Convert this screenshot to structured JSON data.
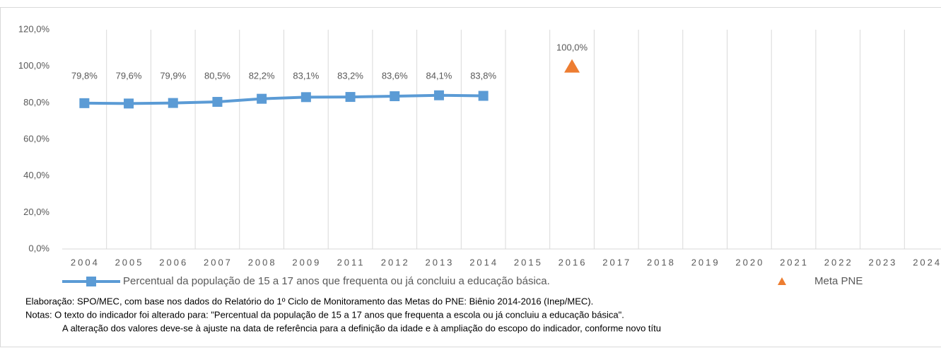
{
  "chart_data": {
    "type": "line",
    "categories": [
      "2004",
      "2005",
      "2006",
      "2007",
      "2008",
      "2009",
      "2011",
      "2012",
      "2013",
      "2014",
      "2015",
      "2016",
      "2017",
      "2018",
      "2019",
      "2020",
      "2021",
      "2022",
      "2023",
      "2024"
    ],
    "series": [
      {
        "name": "Percentual da população de 15 a 17 anos que frequenta ou já concluiu a educação básica.",
        "color": "#5b9bd5",
        "marker": "square",
        "values": [
          79.8,
          79.6,
          79.9,
          80.5,
          82.2,
          83.1,
          83.2,
          83.6,
          84.1,
          83.8,
          null,
          null,
          null,
          null,
          null,
          null,
          null,
          null,
          null,
          null
        ],
        "value_labels": [
          "79,8%",
          "79,6%",
          "79,9%",
          "80,5%",
          "82,2%",
          "83,1%",
          "83,2%",
          "83,6%",
          "84,1%",
          "83,8%",
          null,
          null,
          null,
          null,
          null,
          null,
          null,
          null,
          null,
          null
        ]
      },
      {
        "name": "Meta PNE",
        "color": "#ed7d31",
        "marker": "triangle",
        "values": [
          null,
          null,
          null,
          null,
          null,
          null,
          null,
          null,
          null,
          null,
          null,
          100,
          null,
          null,
          null,
          null,
          null,
          null,
          null,
          null
        ],
        "value_labels": [
          null,
          null,
          null,
          null,
          null,
          null,
          null,
          null,
          null,
          null,
          null,
          "100,0%",
          null,
          null,
          null,
          null,
          null,
          null,
          null,
          null
        ]
      }
    ],
    "ylim": [
      0,
      120
    ],
    "yticks": [
      {
        "value": 0,
        "label": "0,0%"
      },
      {
        "value": 20,
        "label": "20,0%"
      },
      {
        "value": 40,
        "label": "40,0%"
      },
      {
        "value": 60,
        "label": "60,0%"
      },
      {
        "value": 80,
        "label": "80,0%"
      },
      {
        "value": 100,
        "label": "100,0%"
      },
      {
        "value": 120,
        "label": "120,0%"
      }
    ],
    "grid": "vertical",
    "legend": "bottom",
    "notes": [
      "Elaboração: SPO/MEC,  com base nos dados do Relatório do 1º Ciclo de Monitoramento  das Metas do PNE:  Biênio 2014-2016 (Inep/MEC).",
      "Notas: O texto do indicador foi alterado para: \"Percentual da população de 15 a 17 anos que frequenta a escola ou já concluiu a educação básica\".",
      "A alteração dos valores deve-se à ajuste na data de referência para a definição da idade e à ampliação do escopo do indicador, conforme novo títu"
    ]
  }
}
